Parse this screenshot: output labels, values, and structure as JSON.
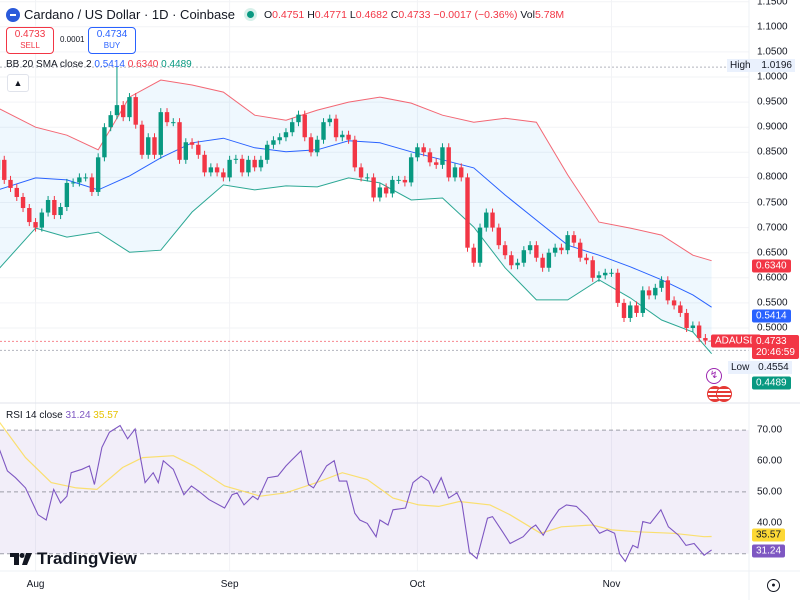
{
  "header": {
    "title": "Cardano / US Dollar · 1D · Coinbase",
    "open_label": "O",
    "open": "0.4751",
    "high_label": "H",
    "high": "0.4771",
    "low_label": "L",
    "low": "0.4682",
    "close_label": "C",
    "close": "0.4733",
    "change": "−0.0017 (−0.36%)",
    "vol_label": "Vol",
    "vol": "5.78M"
  },
  "trade": {
    "sell_price": "0.4733",
    "sell_label": "SELL",
    "spread": "0.0001",
    "buy_price": "0.4734",
    "buy_label": "BUY"
  },
  "bb_legend": {
    "label": "BB 20 SMA close 2",
    "basis": "0.5414",
    "upper": "0.6340",
    "lower": "0.4489"
  },
  "rsi_legend": {
    "label": "RSI 14 close",
    "rsi": "31.24",
    "ma": "35.57"
  },
  "price_axis": [
    "1.1500",
    "1.1000",
    "1.0500",
    "1.0000",
    "0.9500",
    "0.9000",
    "0.8500",
    "0.8000",
    "0.7500",
    "0.7000",
    "0.6500",
    "0.6000",
    "0.5500",
    "0.5000"
  ],
  "rsi_axis": [
    "70.00",
    "60.00",
    "50.00",
    "40.00"
  ],
  "tags": {
    "high_label": "High",
    "high_value": "1.0196",
    "upper": "0.6340",
    "basis": "0.5414",
    "symbol": "ADAUSD",
    "last": "0.4733",
    "countdown": "20:46:59",
    "low_label": "Low",
    "low_value": "0.4554",
    "lower": "0.4489",
    "rsi_ma": "35.57",
    "rsi": "31.24"
  },
  "time_axis": [
    {
      "label": "Aug",
      "index": 6
    },
    {
      "label": "Sep",
      "index": 37
    },
    {
      "label": "Oct",
      "index": 67
    },
    {
      "label": "Nov",
      "index": 98
    }
  ],
  "brand": "TradingView",
  "colors": {
    "up": "#089981",
    "down": "#f23645",
    "basis": "#2962ff",
    "upper": "#f23645",
    "lower": "#089981",
    "rsi": "#7e57c2",
    "rsi_ma": "#fdd835"
  },
  "chart_data": [
    {
      "type": "candlestick",
      "symbol": "ADAUSD",
      "ylim": [
        0.43,
        1.16
      ],
      "first_open": 0.815,
      "closes": [
        0.835,
        0.795,
        0.779,
        0.761,
        0.739,
        0.711,
        0.7,
        0.73,
        0.755,
        0.725,
        0.741,
        0.789,
        0.79,
        0.8,
        0.8,
        0.771,
        0.84,
        0.9,
        0.924,
        0.944,
        0.92,
        0.96,
        0.905,
        0.845,
        0.88,
        0.845,
        0.93,
        0.91,
        0.91,
        0.835,
        0.87,
        0.865,
        0.845,
        0.81,
        0.82,
        0.81,
        0.8,
        0.835,
        0.837,
        0.81,
        0.835,
        0.82,
        0.835,
        0.865,
        0.874,
        0.88,
        0.89,
        0.91,
        0.925,
        0.88,
        0.85,
        0.875,
        0.91,
        0.917,
        0.88,
        0.885,
        0.875,
        0.82,
        0.8,
        0.8,
        0.76,
        0.78,
        0.768,
        0.795,
        0.795,
        0.79,
        0.84,
        0.86,
        0.85,
        0.83,
        0.825,
        0.86,
        0.8,
        0.82,
        0.8,
        0.66,
        0.63,
        0.7,
        0.73,
        0.7,
        0.665,
        0.645,
        0.625,
        0.63,
        0.655,
        0.665,
        0.64,
        0.62,
        0.65,
        0.66,
        0.655,
        0.685,
        0.67,
        0.64,
        0.635,
        0.6,
        0.605,
        0.61,
        0.61,
        0.55,
        0.52,
        0.545,
        0.53,
        0.575,
        0.565,
        0.58,
        0.595,
        0.555,
        0.545,
        0.53,
        0.5,
        0.505,
        0.48,
        0.475,
        0.4733
      ],
      "period_high": {
        "index": 19,
        "value": 1.0196
      },
      "period_low": 0.4554,
      "bollinger": {
        "index": [
          0,
          6,
          11,
          16,
          21,
          26,
          31,
          36,
          41,
          46,
          51,
          56,
          61,
          66,
          71,
          76,
          81,
          86,
          91,
          96,
          101,
          106,
          111,
          114
        ],
        "upper": [
          0.938,
          0.9,
          0.884,
          0.855,
          0.96,
          0.994,
          0.984,
          0.97,
          0.924,
          0.914,
          0.934,
          0.95,
          0.96,
          0.948,
          0.924,
          0.91,
          0.918,
          0.91,
          0.805,
          0.711,
          0.699,
          0.685,
          0.645,
          0.634
        ],
        "basis": [
          0.775,
          0.799,
          0.795,
          0.775,
          0.803,
          0.839,
          0.869,
          0.878,
          0.859,
          0.851,
          0.855,
          0.873,
          0.869,
          0.851,
          0.835,
          0.819,
          0.765,
          0.715,
          0.665,
          0.645,
          0.622,
          0.596,
          0.566,
          0.5414
        ],
        "lower": [
          0.616,
          0.699,
          0.681,
          0.691,
          0.651,
          0.655,
          0.731,
          0.785,
          0.775,
          0.783,
          0.781,
          0.799,
          0.789,
          0.755,
          0.759,
          0.701,
          0.62,
          0.556,
          0.556,
          0.596,
          0.56,
          0.516,
          0.492,
          0.4489
        ]
      }
    },
    {
      "type": "line",
      "name": "RSI 14 close",
      "ylim": [
        25,
        75
      ],
      "levels": [
        70,
        50,
        30
      ],
      "rsi": [
        [
          0,
          65.0
        ],
        [
          1.5,
          56.8
        ],
        [
          2.8,
          54.6
        ],
        [
          4.4,
          51.3
        ],
        [
          6.4,
          42.6
        ],
        [
          7.7,
          40.9
        ],
        [
          8.9,
          50.8
        ],
        [
          10,
          46.4
        ],
        [
          11,
          48.6
        ],
        [
          11.7,
          56.2
        ],
        [
          13.4,
          57.3
        ],
        [
          14.6,
          58.4
        ],
        [
          15.4,
          52.4
        ],
        [
          16.6,
          64.4
        ],
        [
          17.8,
          69.3
        ],
        [
          19.5,
          71.5
        ],
        [
          20.7,
          67.2
        ],
        [
          21.9,
          70.4
        ],
        [
          23.5,
          53.0
        ],
        [
          24.8,
          56.2
        ],
        [
          25.6,
          53.0
        ],
        [
          26.4,
          60.1
        ],
        [
          28,
          57.3
        ],
        [
          29.7,
          49.1
        ],
        [
          30.9,
          51.9
        ],
        [
          32.1,
          50.2
        ],
        [
          33.7,
          47.5
        ],
        [
          36.2,
          44.8
        ],
        [
          37.4,
          49.1
        ],
        [
          38.2,
          49.7
        ],
        [
          39.3,
          45.8
        ],
        [
          40.7,
          48.6
        ],
        [
          41.5,
          47.5
        ],
        [
          43.1,
          54.6
        ],
        [
          44.7,
          55.1
        ],
        [
          46,
          58.4
        ],
        [
          46.8,
          60.1
        ],
        [
          48.4,
          63.3
        ],
        [
          49.6,
          52.4
        ],
        [
          50.4,
          51.3
        ],
        [
          52.5,
          58.4
        ],
        [
          53.7,
          60.1
        ],
        [
          54.5,
          53.5
        ],
        [
          55.7,
          53.5
        ],
        [
          57,
          43.1
        ],
        [
          57.8,
          40.9
        ],
        [
          59,
          39.8
        ],
        [
          60.4,
          35.5
        ],
        [
          61,
          40.9
        ],
        [
          62.3,
          39.3
        ],
        [
          63.1,
          44.2
        ],
        [
          65.1,
          44.8
        ],
        [
          66.3,
          53.0
        ],
        [
          67.6,
          55.1
        ],
        [
          68.8,
          53.5
        ],
        [
          69.6,
          49.7
        ],
        [
          70.8,
          54.6
        ],
        [
          72,
          48.0
        ],
        [
          73.3,
          49.7
        ],
        [
          74.1,
          46.4
        ],
        [
          75.3,
          30.5
        ],
        [
          76.5,
          28.4
        ],
        [
          78.2,
          41.5
        ],
        [
          79,
          42.0
        ],
        [
          80.6,
          37.1
        ],
        [
          81.8,
          33.3
        ],
        [
          83.9,
          35.5
        ],
        [
          85.1,
          38.2
        ],
        [
          85.9,
          39.3
        ],
        [
          87.1,
          36.0
        ],
        [
          88.3,
          40.4
        ],
        [
          89.6,
          44.2
        ],
        [
          90.8,
          45.8
        ],
        [
          92.4,
          45.3
        ],
        [
          94.1,
          42.0
        ],
        [
          96.1,
          36.6
        ],
        [
          97.3,
          37.7
        ],
        [
          98.5,
          36.6
        ],
        [
          99.3,
          30.0
        ],
        [
          100.2,
          27.5
        ],
        [
          101.4,
          32.7
        ],
        [
          102.2,
          31.9
        ],
        [
          103,
          40.4
        ],
        [
          104.2,
          39.8
        ],
        [
          105.9,
          44.2
        ],
        [
          107.1,
          38.7
        ],
        [
          108.7,
          36.0
        ],
        [
          109.9,
          32.7
        ],
        [
          111.2,
          33.3
        ],
        [
          112.8,
          29.5
        ],
        [
          114,
          31.24
        ]
      ],
      "rsi_ma": [
        [
          0,
          73.2
        ],
        [
          4.4,
          61.1
        ],
        [
          8.5,
          53.0
        ],
        [
          12.5,
          51.3
        ],
        [
          15.8,
          50.8
        ],
        [
          19.9,
          57.9
        ],
        [
          23.1,
          61.1
        ],
        [
          28,
          61.7
        ],
        [
          31.3,
          58.4
        ],
        [
          36.2,
          51.9
        ],
        [
          41.9,
          48.6
        ],
        [
          46,
          49.7
        ],
        [
          50.9,
          53.0
        ],
        [
          55,
          56.2
        ],
        [
          59,
          54.0
        ],
        [
          63.1,
          48.0
        ],
        [
          67.2,
          45.8
        ],
        [
          70.4,
          45.3
        ],
        [
          73.7,
          46.9
        ],
        [
          78.6,
          45.8
        ],
        [
          81.8,
          42.6
        ],
        [
          86.7,
          36.6
        ],
        [
          90,
          38.7
        ],
        [
          94.9,
          39.3
        ],
        [
          98.1,
          37.7
        ],
        [
          102.2,
          37.1
        ],
        [
          107.9,
          36.6
        ],
        [
          112.8,
          35.5
        ],
        [
          114,
          35.57
        ]
      ]
    }
  ]
}
